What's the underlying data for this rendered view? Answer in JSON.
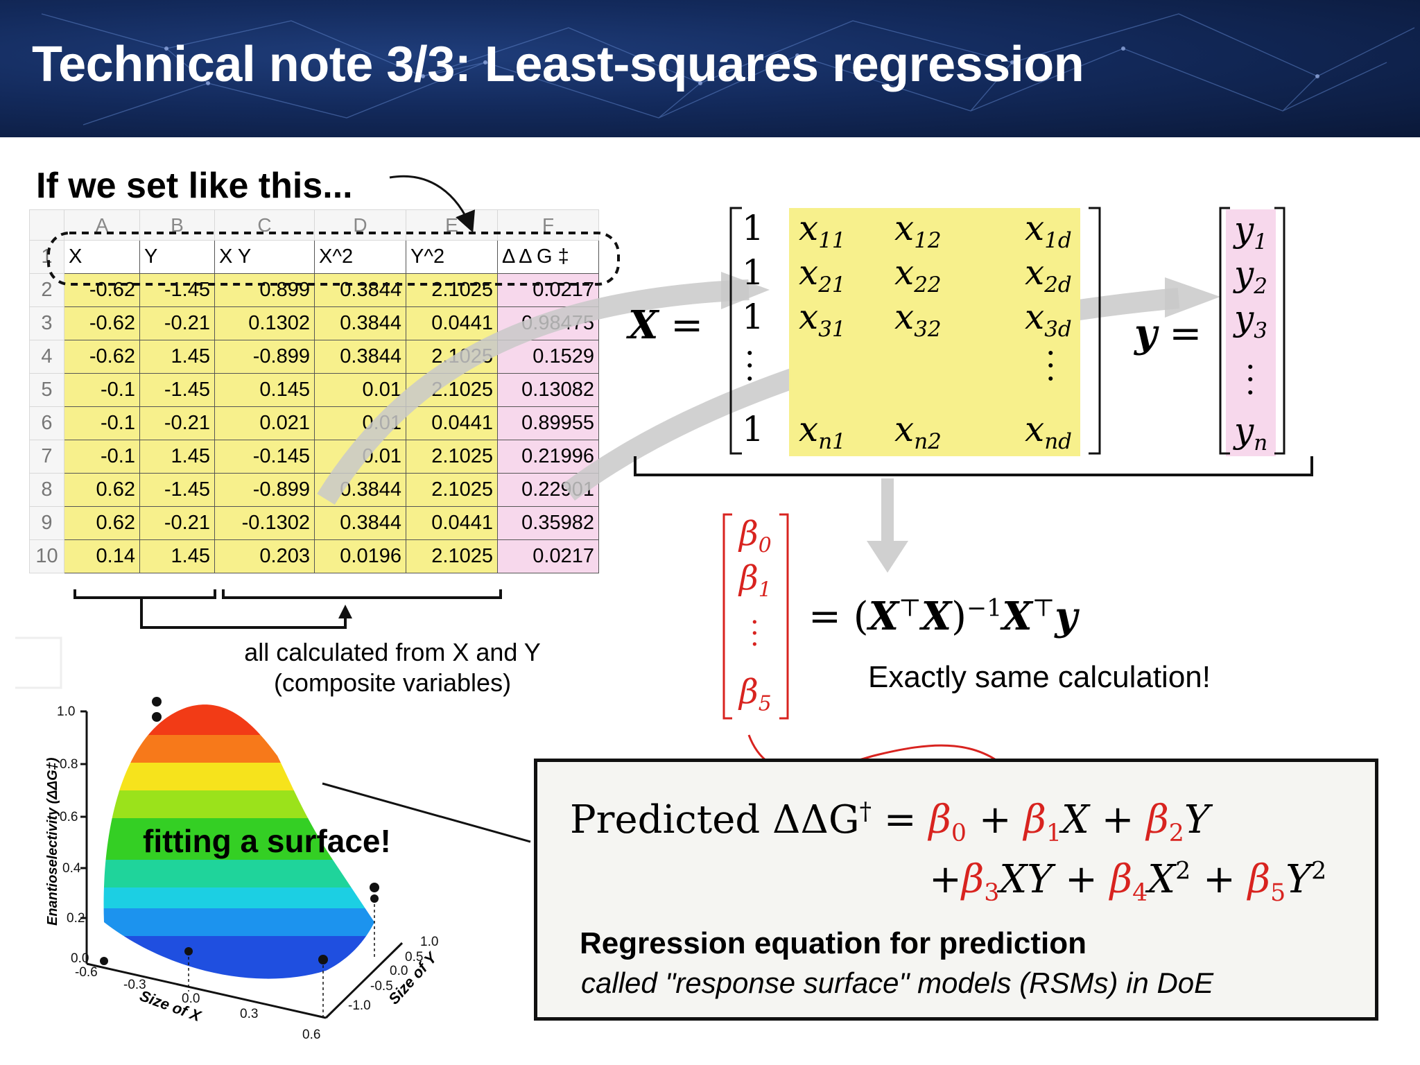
{
  "title": "Technical note 3/3: Least-squares regression",
  "intro": "If we set like this...",
  "sheet": {
    "column_letters": [
      "A",
      "B",
      "C",
      "D",
      "E",
      "F"
    ],
    "header_row_number": "1",
    "headers": [
      "X",
      "Y",
      "X Y",
      "X^2",
      "Y^2",
      "Δ Δ G ‡"
    ],
    "rows": [
      {
        "n": "2",
        "cells": [
          "-0.62",
          "-1.45",
          "0.899",
          "0.3844",
          "2.1025",
          "0.0217"
        ]
      },
      {
        "n": "3",
        "cells": [
          "-0.62",
          "-0.21",
          "0.1302",
          "0.3844",
          "0.0441",
          "0.98475"
        ]
      },
      {
        "n": "4",
        "cells": [
          "-0.62",
          "1.45",
          "-0.899",
          "0.3844",
          "2.1025",
          "0.1529"
        ]
      },
      {
        "n": "5",
        "cells": [
          "-0.1",
          "-1.45",
          "0.145",
          "0.01",
          "2.1025",
          "0.13082"
        ]
      },
      {
        "n": "6",
        "cells": [
          "-0.1",
          "-0.21",
          "0.021",
          "0.01",
          "0.0441",
          "0.89955"
        ]
      },
      {
        "n": "7",
        "cells": [
          "-0.1",
          "1.45",
          "-0.145",
          "0.01",
          "2.1025",
          "0.21996"
        ]
      },
      {
        "n": "8",
        "cells": [
          "0.62",
          "-1.45",
          "-0.899",
          "0.3844",
          "2.1025",
          "0.22901"
        ]
      },
      {
        "n": "9",
        "cells": [
          "0.62",
          "-0.21",
          "-0.1302",
          "0.3844",
          "0.0441",
          "0.35982"
        ]
      },
      {
        "n": "10",
        "cells": [
          "0.14",
          "1.45",
          "0.203",
          "0.0196",
          "2.1025",
          "0.0217"
        ]
      }
    ]
  },
  "caption_line1": "all calculated from X and Y",
  "caption_line2": "(composite variables)",
  "matrix_X": {
    "label": "X",
    "rows": [
      [
        "1",
        "x",
        "11",
        "x",
        "12",
        "x",
        "1d"
      ],
      [
        "1",
        "x",
        "21",
        "x",
        "22",
        "x",
        "2d"
      ],
      [
        "1",
        "x",
        "31",
        "x",
        "32",
        "x",
        "3d"
      ],
      [
        "1",
        "x",
        "n1",
        "x",
        "n2",
        "x",
        "nd"
      ]
    ]
  },
  "vector_y": {
    "label": "y",
    "entries": [
      [
        "y",
        "1"
      ],
      [
        "y",
        "2"
      ],
      [
        "y",
        "3"
      ],
      [
        "y",
        "n"
      ]
    ]
  },
  "beta_vector": [
    [
      "β",
      "0"
    ],
    [
      "β",
      "1"
    ],
    [
      "β",
      "5"
    ]
  ],
  "normal_equation": {
    "lhs": "= (",
    "X": "X",
    "T": "⊤",
    "inv": "−1",
    "y": "y"
  },
  "exactly": "Exactly same calculation!",
  "predicted": {
    "prefix": "Predicted ΔΔG",
    "dagger": "†",
    "terms": [
      "β",
      "0",
      "β",
      "1",
      "X",
      "β",
      "2",
      "Y",
      "β",
      "3",
      "XY",
      "β",
      "4",
      "X",
      "2",
      "β",
      "5",
      "Y",
      "2"
    ]
  },
  "rsm_title": "Regression equation for prediction",
  "rsm_subtitle": "called \"response surface\" models (RSMs) in DoE",
  "surface_plot": {
    "ylabel": "Enantioselectivity (ΔΔG‡)",
    "z_ticks": [
      "1.0",
      "0.8",
      "0.6",
      "0.4",
      "0.2",
      "0.0"
    ],
    "x_label": "Size of X",
    "x_ticks": [
      "-0.6",
      "-0.3",
      "0.0",
      "0.3",
      "0.6"
    ],
    "y_label": "Size of Y",
    "y_ticks": [
      "1.0",
      "0.5",
      "0.0",
      "-0.5",
      "-1.0"
    ],
    "annotation": "fitting a surface!"
  },
  "colors": {
    "yellow": "#f7f08c",
    "pink": "#f7d8ec",
    "red": "#d8231f",
    "banner": "#132a5c"
  }
}
